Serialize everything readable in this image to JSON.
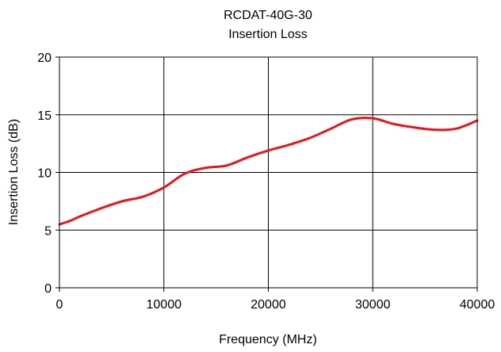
{
  "chart_data": {
    "type": "line",
    "title": "RCDAT-40G-30",
    "subtitle": "Insertion Loss",
    "xlabel": "Frequency (MHz)",
    "ylabel": "Insertion Loss (dB)",
    "xlim": [
      0,
      40000
    ],
    "ylim": [
      0,
      20
    ],
    "x_ticks": [
      0,
      10000,
      20000,
      30000,
      40000
    ],
    "y_ticks": [
      0,
      5,
      10,
      15,
      20
    ],
    "x_tick_labels": [
      "0",
      "10000",
      "20000",
      "30000",
      "40000"
    ],
    "y_tick_labels": [
      "0",
      "5",
      "10",
      "15",
      "20"
    ],
    "grid": true,
    "legend": "none",
    "series": [
      {
        "color": "#e8141b",
        "x": [
          0,
          1000,
          2000,
          4000,
          6000,
          8000,
          10000,
          12000,
          14000,
          16000,
          18000,
          20000,
          22000,
          24000,
          26000,
          28000,
          30000,
          32000,
          34000,
          36000,
          38000,
          40000
        ],
        "y": [
          5.5,
          5.8,
          6.2,
          6.9,
          7.5,
          7.9,
          8.7,
          9.9,
          10.4,
          10.6,
          11.3,
          11.9,
          12.4,
          13.0,
          13.8,
          14.6,
          14.7,
          14.2,
          13.9,
          13.7,
          13.8,
          14.5
        ]
      }
    ]
  }
}
